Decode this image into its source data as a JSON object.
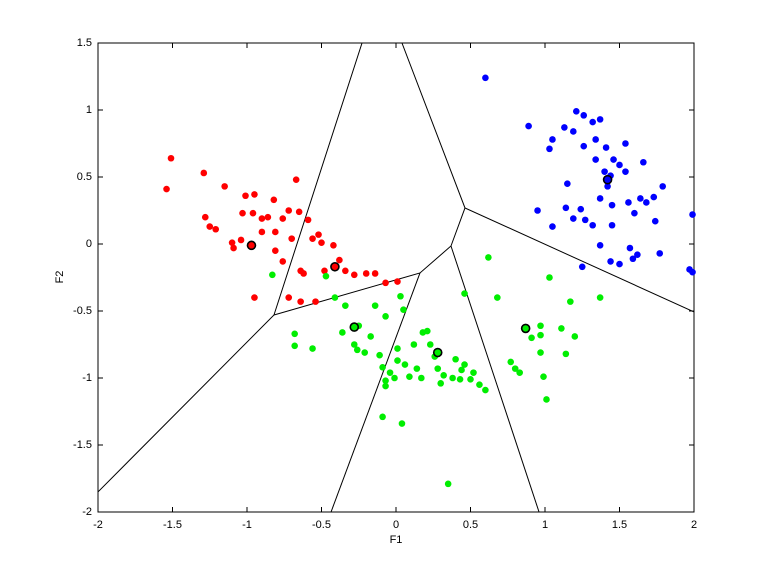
{
  "chart_data": {
    "type": "scatter",
    "xlabel": "F1",
    "ylabel": "F2",
    "xlim": [
      -2,
      2
    ],
    "ylim": [
      -2,
      1.5
    ],
    "xticks": [
      -2,
      -1.5,
      -1,
      -0.5,
      0,
      0.5,
      1,
      1.5,
      2
    ],
    "yticks": [
      -2,
      -1.5,
      -1,
      -0.5,
      0,
      0.5,
      1,
      1.5
    ],
    "grid": false,
    "series": [
      {
        "color": "#ff0000",
        "x": [
          -1.51,
          -1.54,
          -1.29,
          -1.28,
          -1.25,
          -1.21,
          -1.15,
          -1.09,
          -1.04,
          -1.03,
          -1.01,
          -0.97,
          -0.95,
          -0.96,
          -0.9,
          -0.9,
          -0.86,
          -0.82,
          -0.81,
          -0.81,
          -0.76,
          -0.72,
          -0.7,
          -0.67,
          -0.65,
          -0.64,
          -0.62,
          -0.59,
          -0.56,
          -0.52,
          -0.5,
          -0.42,
          -0.38,
          -0.34,
          -0.28,
          -0.2,
          -0.14,
          -0.07,
          0.01,
          -0.72,
          -0.64,
          -0.54,
          -0.95,
          -1.1,
          -0.48,
          -0.76
        ],
        "y": [
          0.64,
          0.41,
          0.53,
          0.2,
          0.13,
          0.11,
          0.43,
          -0.03,
          0.03,
          0.23,
          0.36,
          -0.01,
          0.37,
          0.23,
          0.19,
          0.09,
          0.2,
          0.33,
          0.09,
          -0.05,
          0.19,
          0.25,
          0.04,
          0.48,
          0.24,
          -0.2,
          -0.22,
          0.18,
          0.04,
          0.07,
          0.01,
          -0.01,
          -0.12,
          -0.2,
          -0.23,
          -0.22,
          -0.22,
          -0.29,
          -0.28,
          -0.4,
          -0.43,
          -0.43,
          -0.4,
          0.01,
          -0.2,
          -0.13
        ],
        "centroids": {
          "x": [
            -0.97,
            -0.41
          ],
          "y": [
            -0.01,
            -0.17
          ]
        }
      },
      {
        "color": "#00ee00",
        "x": [
          -0.83,
          -0.68,
          -0.68,
          -0.47,
          -0.56,
          -0.41,
          -0.34,
          -0.36,
          -0.28,
          -0.26,
          -0.25,
          -0.21,
          -0.17,
          -0.14,
          -0.11,
          -0.09,
          -0.07,
          -0.07,
          -0.04,
          -0.01,
          0.01,
          0.01,
          0.03,
          0.05,
          0.06,
          0.09,
          0.12,
          0.14,
          0.17,
          0.18,
          0.21,
          0.23,
          0.26,
          0.28,
          0.3,
          0.32,
          0.38,
          0.4,
          0.43,
          0.44,
          0.46,
          0.5,
          0.52,
          0.56,
          0.6,
          0.62,
          0.46,
          0.68,
          0.77,
          0.8,
          0.83,
          0.91,
          0.97,
          0.97,
          0.97,
          0.99,
          1.01,
          1.03,
          1.11,
          1.14,
          1.17,
          1.2,
          1.37,
          -0.09,
          0.04,
          0.35,
          -0.07
        ],
        "y": [
          -0.23,
          -0.67,
          -0.76,
          -0.24,
          -0.78,
          -0.4,
          -0.46,
          -0.66,
          -0.75,
          -0.79,
          -0.61,
          -0.81,
          -0.69,
          -0.46,
          -0.83,
          -0.92,
          -0.54,
          -1.02,
          -0.96,
          -1.0,
          -0.78,
          -0.87,
          -0.39,
          -0.49,
          -0.9,
          -0.99,
          -0.75,
          -0.93,
          -1.0,
          -0.66,
          -0.65,
          -0.75,
          -0.84,
          -0.93,
          -1.04,
          -0.98,
          -1.0,
          -0.86,
          -1.01,
          -0.94,
          -0.9,
          -1.01,
          -0.96,
          -1.05,
          -1.09,
          -0.1,
          -0.37,
          -0.4,
          -0.88,
          -0.93,
          -0.96,
          -0.7,
          -0.68,
          -0.61,
          -0.81,
          -0.99,
          -1.16,
          -0.25,
          -0.63,
          -0.82,
          -0.43,
          -0.69,
          -0.4,
          -1.29,
          -1.34,
          -1.79,
          -1.06
        ],
        "centroids": {
          "x": [
            -0.28,
            0.28,
            0.87
          ],
          "y": [
            -0.62,
            -0.81,
            -0.63
          ]
        }
      },
      {
        "color": "#0000ff",
        "x": [
          0.6,
          0.89,
          1.03,
          1.05,
          1.13,
          1.15,
          1.19,
          1.21,
          1.26,
          1.26,
          1.24,
          1.27,
          1.32,
          1.34,
          1.34,
          1.37,
          1.37,
          1.4,
          1.41,
          1.42,
          1.44,
          1.45,
          1.45,
          1.46,
          1.5,
          1.54,
          1.54,
          1.56,
          1.57,
          1.59,
          1.6,
          1.64,
          1.66,
          1.68,
          1.73,
          1.74,
          1.77,
          1.79,
          1.99,
          1.97,
          1.99,
          0.95,
          1.05,
          1.14,
          1.19,
          1.37,
          1.32,
          1.44,
          1.5,
          1.25,
          1.62
        ],
        "y": [
          1.24,
          0.88,
          0.71,
          0.78,
          0.87,
          0.45,
          0.84,
          0.99,
          0.96,
          0.73,
          0.26,
          0.18,
          0.91,
          0.78,
          0.63,
          0.93,
          0.34,
          0.54,
          0.72,
          0.43,
          0.51,
          0.29,
          0.14,
          0.63,
          0.59,
          0.75,
          0.54,
          0.31,
          -0.03,
          -0.11,
          0.23,
          0.34,
          0.61,
          0.31,
          0.35,
          0.17,
          -0.07,
          0.43,
          0.22,
          -0.19,
          -0.21,
          0.25,
          0.13,
          0.27,
          0.19,
          -0.01,
          0.14,
          -0.13,
          -0.15,
          -0.17,
          -0.08
        ],
        "centroids": {
          "x": [
            1.42
          ],
          "y": [
            0.48
          ]
        }
      }
    ],
    "centroid_edgecolor": "#000000",
    "boundary_color": "#000000",
    "boundaries": [
      {
        "x": [
          -0.228,
          -0.819,
          -2
        ],
        "y": [
          1.5,
          -0.53,
          -1.85
        ]
      },
      {
        "x": [
          0.04,
          0.463,
          2
        ],
        "y": [
          1.5,
          0.269,
          -0.507
        ]
      },
      {
        "x": [
          0.463,
          0.369,
          0.161,
          -0.819
        ],
        "y": [
          0.269,
          -0.015,
          -0.216,
          -0.53
        ]
      },
      {
        "x": [
          0.369,
          0.96
        ],
        "y": [
          -0.015,
          -2
        ]
      },
      {
        "x": [
          0.161,
          -0.436
        ],
        "y": [
          -0.216,
          -2
        ]
      }
    ]
  }
}
